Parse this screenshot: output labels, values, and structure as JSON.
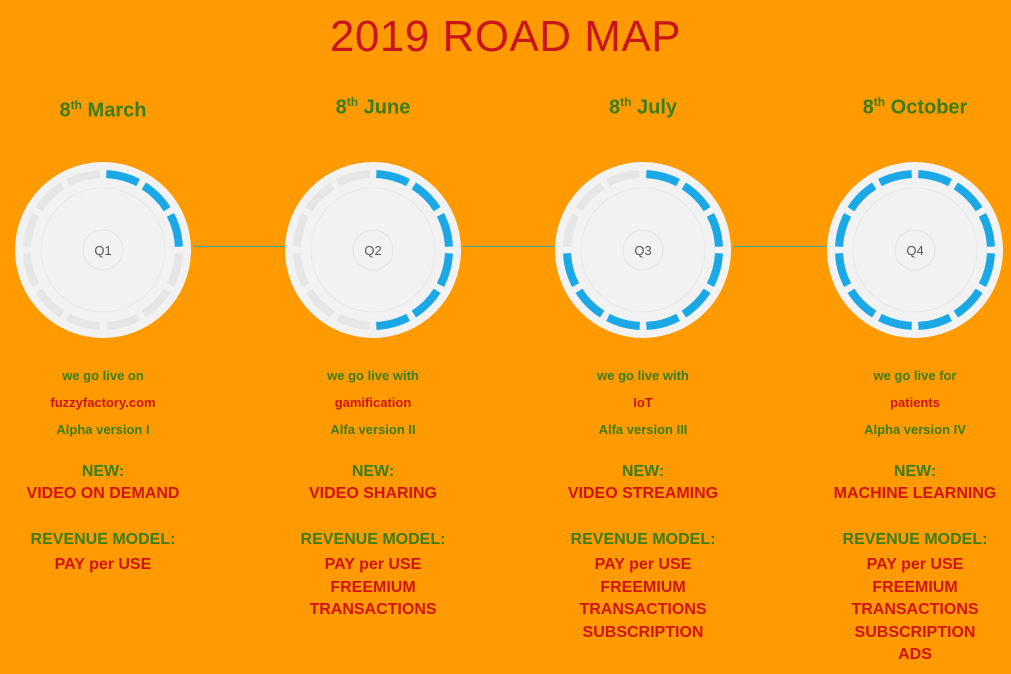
{
  "title": "2019 ROAD MAP",
  "colors": {
    "background": "#ff9a00",
    "title": "#c8151b",
    "green_text": "#3a7d1c",
    "red_text": "#d01414",
    "progress": "#1aa9e6",
    "ring_track": "#e6e6e6",
    "ring_face": "#f2f2f2"
  },
  "segments_per_ring": 12,
  "new_label": "NEW:",
  "revenue_label": "REVENUE MODEL:",
  "milestones": [
    {
      "day": "8",
      "suffix": "th",
      "month": "March",
      "quarter": "Q1",
      "progress": 0.25,
      "intro": "we go live on",
      "highlight": "fuzzyfactory.com",
      "version": "Alpha version I",
      "new_feature": "VIDEO ON DEMAND",
      "revenue": [
        "PAY per USE"
      ]
    },
    {
      "day": "8",
      "suffix": "th",
      "month": "June",
      "quarter": "Q2",
      "progress": 0.5,
      "intro": "we go live with",
      "highlight": "gamification",
      "version": "Alfa version II",
      "new_feature": "VIDEO SHARING",
      "revenue": [
        "PAY per USE",
        "FREEMIUM",
        "TRANSACTIONS"
      ]
    },
    {
      "day": "8",
      "suffix": "th",
      "month": "July",
      "quarter": "Q3",
      "progress": 0.75,
      "intro": "we go live with",
      "highlight": "IoT",
      "version": "Alfa version III",
      "new_feature": "VIDEO STREAMING",
      "revenue": [
        "PAY per USE",
        "FREEMIUM",
        "TRANSACTIONS",
        "SUBSCRIPTION"
      ]
    },
    {
      "day": "8",
      "suffix": "th",
      "month": "October",
      "quarter": "Q4",
      "progress": 1.0,
      "intro": "we go live for",
      "highlight": "patients",
      "version": "Alpha version IV",
      "new_feature": "MACHINE LEARNING",
      "revenue": [
        "PAY per USE",
        "FREEMIUM",
        "TRANSACTIONS",
        "SUBSCRIPTION",
        "ADS"
      ]
    }
  ]
}
